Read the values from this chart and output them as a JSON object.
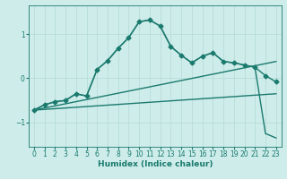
{
  "xlabel": "Humidex (Indice chaleur)",
  "bg_color": "#ceecea",
  "grid_color": "#b8ddd9",
  "line_color": "#1a7a6e",
  "xlim": [
    -0.5,
    23.5
  ],
  "ylim": [
    -1.55,
    1.65
  ],
  "yticks": [
    -1,
    0,
    1
  ],
  "xticks": [
    0,
    1,
    2,
    3,
    4,
    5,
    6,
    7,
    8,
    9,
    10,
    11,
    12,
    13,
    14,
    15,
    16,
    17,
    18,
    19,
    20,
    21,
    22,
    23
  ],
  "series": [
    {
      "x": [
        0,
        23
      ],
      "y": [
        -0.72,
        0.38
      ],
      "marker": false,
      "lw": 1.0
    },
    {
      "x": [
        0,
        23
      ],
      "y": [
        -0.72,
        -0.35
      ],
      "marker": false,
      "lw": 1.0
    },
    {
      "x": [
        0,
        1,
        2,
        3,
        4,
        5,
        6,
        7,
        8,
        9,
        10,
        11,
        12,
        13,
        14,
        15,
        16,
        17,
        18,
        19,
        20,
        21,
        22,
        23
      ],
      "y": [
        -0.72,
        -0.6,
        -0.53,
        -0.5,
        -0.35,
        -0.4,
        0.2,
        0.4,
        0.68,
        0.92,
        1.28,
        1.32,
        1.18,
        0.72,
        0.52,
        0.35,
        0.5,
        0.58,
        0.38,
        0.35,
        0.3,
        0.25,
        0.06,
        -0.08
      ],
      "marker": true,
      "lw": 1.0
    },
    {
      "x": [
        0,
        1,
        2,
        3,
        4,
        5,
        6,
        7,
        8,
        9,
        10,
        11,
        12,
        13,
        14,
        15,
        16,
        17,
        18,
        19,
        20,
        21,
        22,
        23
      ],
      "y": [
        -0.72,
        -0.6,
        -0.53,
        -0.5,
        -0.35,
        -0.4,
        0.2,
        0.4,
        0.68,
        0.92,
        1.28,
        1.32,
        1.18,
        0.72,
        0.52,
        0.35,
        0.5,
        0.58,
        0.38,
        0.35,
        0.3,
        0.25,
        -1.25,
        -1.35
      ],
      "marker": false,
      "lw": 1.0
    }
  ]
}
